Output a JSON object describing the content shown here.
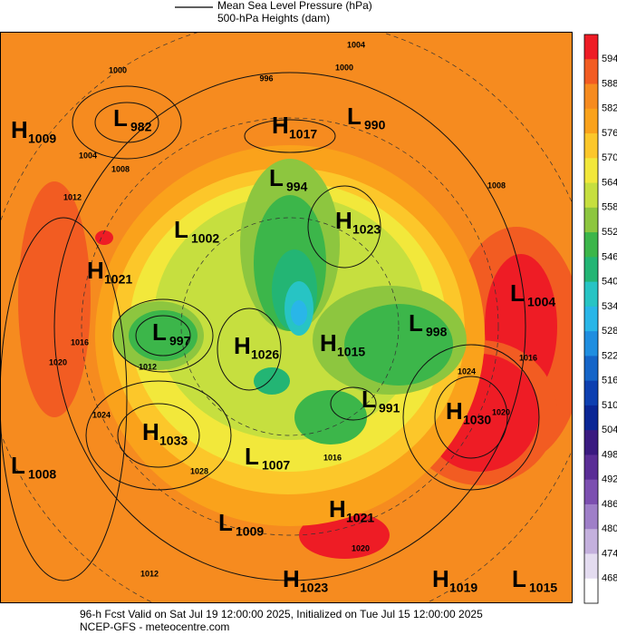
{
  "legend": {
    "line_label": "Mean Sea Level Pressure (hPa)",
    "fill_label": "500-hPa Heights (dam)"
  },
  "colorbar": {
    "levels": [
      594,
      588,
      582,
      576,
      570,
      564,
      558,
      552,
      546,
      540,
      534,
      528,
      522,
      516,
      510,
      504,
      498,
      492,
      486,
      480,
      474,
      468
    ],
    "colors": [
      "#ee1c25",
      "#f25c22",
      "#f68b1f",
      "#faa21b",
      "#fcc72a",
      "#f2e83b",
      "#c6df3f",
      "#8dc63f",
      "#3cb64a",
      "#23b574",
      "#27c4c4",
      "#29b6e8",
      "#1f8ee0",
      "#1565c8",
      "#0d3fb0",
      "#0a2695",
      "#3a1a80",
      "#5a2d96",
      "#7c4fb0",
      "#9f7fc8",
      "#c4b0dd",
      "#e4dcf0",
      "#ffffff"
    ]
  },
  "centers": [
    {
      "type": "H",
      "value": 1009
    },
    {
      "type": "L",
      "value": 982
    },
    {
      "type": "H",
      "value": 1017
    },
    {
      "type": "L",
      "value": 990
    },
    {
      "type": "L",
      "value": 994
    },
    {
      "type": "L",
      "value": 1002
    },
    {
      "type": "H",
      "value": 1023
    },
    {
      "type": "H",
      "value": 1021
    },
    {
      "type": "L",
      "value": 1004
    },
    {
      "type": "L",
      "value": 997
    },
    {
      "type": "H",
      "value": 1026
    },
    {
      "type": "H",
      "value": 1015
    },
    {
      "type": "L",
      "value": 998
    },
    {
      "type": "L",
      "value": 991
    },
    {
      "type": "H",
      "value": 1030
    },
    {
      "type": "H",
      "value": 1033
    },
    {
      "type": "L",
      "value": 1008
    },
    {
      "type": "L",
      "value": 1007
    },
    {
      "type": "H",
      "value": 1021
    },
    {
      "type": "L",
      "value": 1009
    },
    {
      "type": "H",
      "value": 1023
    },
    {
      "type": "H",
      "value": 1019
    },
    {
      "type": "L",
      "value": 1015
    }
  ],
  "contour_labels": [
    1000,
    1004,
    996,
    1000,
    1004,
    1008,
    1012,
    1016,
    1020,
    1024,
    1012,
    1028,
    1012,
    1016,
    1020,
    1024,
    1020,
    1016,
    1008
  ],
  "footer": {
    "valid": "96-h Fcst Valid on Sat Jul 19 12:00:00 2025, Initialized on Tue Jul 15 12:00:00 2025",
    "source": "NCEP-GFS  - meteocentre.com"
  }
}
